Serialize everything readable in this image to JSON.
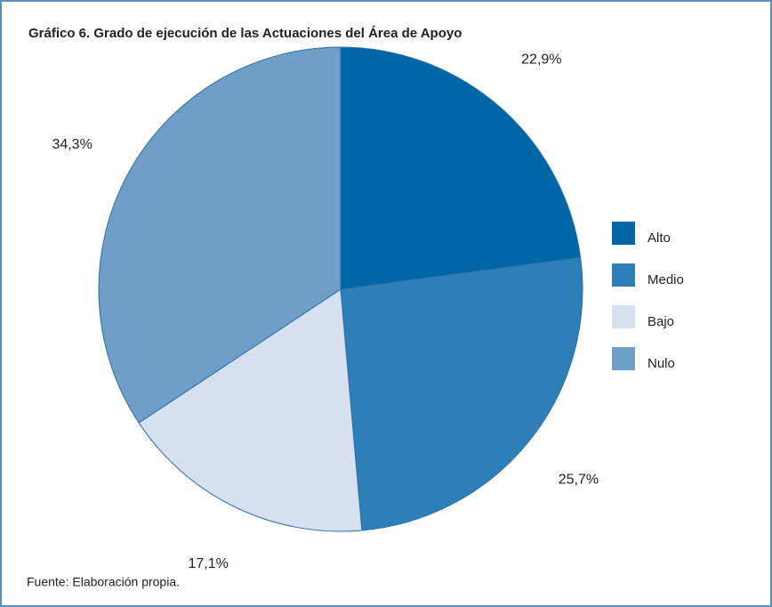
{
  "chart_data": {
    "type": "pie",
    "title": "Gráfico 6. Grado de ejecución de las Actuaciones del Área de Apoyo",
    "categories": [
      "Alto",
      "Medio",
      "Bajo",
      "Nulo"
    ],
    "values": [
      22.9,
      25.7,
      17.1,
      34.3
    ],
    "value_labels": [
      "22,9%",
      "25,7%",
      "17,1%",
      "34,3%"
    ],
    "colors": [
      "#0066a6",
      "#2e7fb8",
      "#d6e0f0",
      "#6f9ec9"
    ],
    "legend": "right",
    "source": "Fuente: Elaboración propia."
  }
}
